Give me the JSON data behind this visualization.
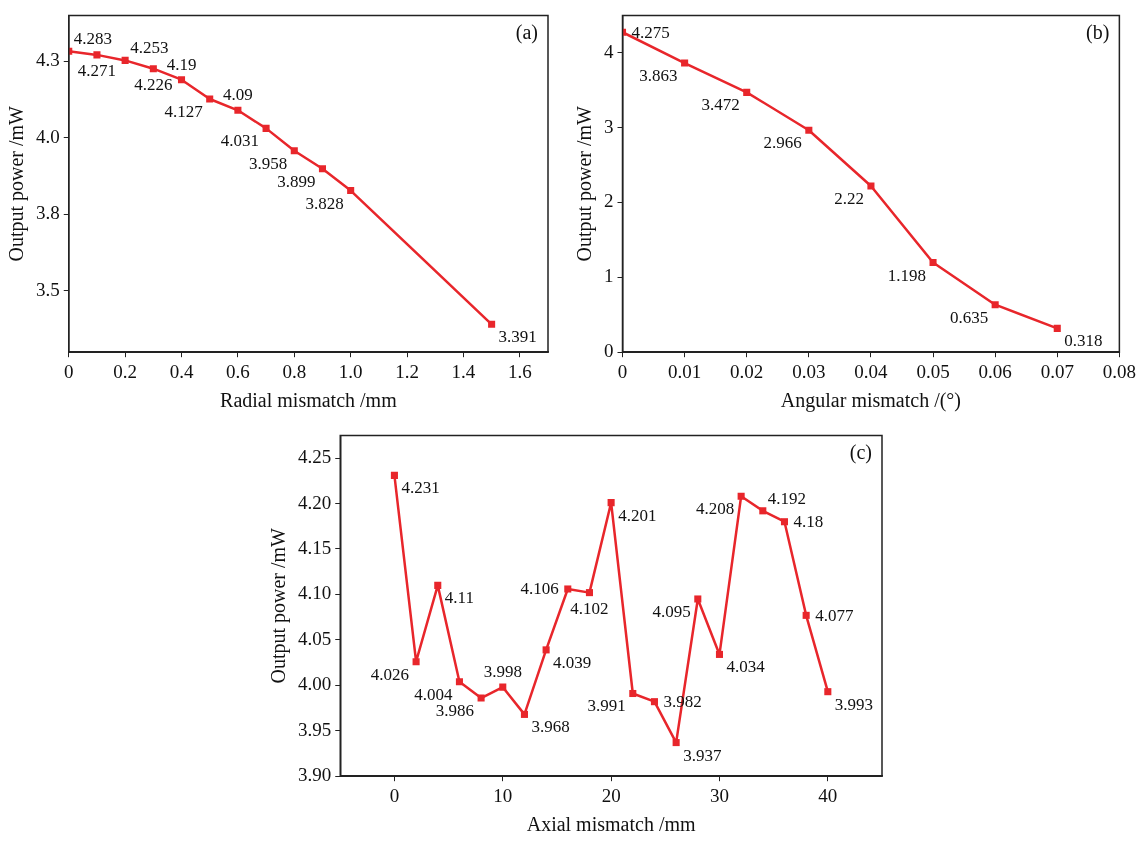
{
  "chart_data": [
    {
      "type": "line",
      "xlabel": "Radial mismatch /mm",
      "ylabel": "Output power /mW",
      "annotations": [
        "(a)"
      ],
      "x": [
        0,
        0.1,
        0.2,
        0.3,
        0.4,
        0.5,
        0.6,
        0.7,
        0.8,
        0.9,
        1.0,
        1.5
      ],
      "series": [
        {
          "color": "#e8262b",
          "values": [
            4.283,
            4.271,
            4.253,
            4.226,
            4.19,
            4.127,
            4.09,
            4.031,
            3.958,
            3.899,
            3.828,
            3.391
          ]
        }
      ],
      "xlim": [
        0,
        1.7
      ],
      "xticks": [
        0,
        0.2,
        0.4,
        0.6,
        0.8,
        {
          "value": 1,
          "label": "1.0"
        },
        1.2,
        1.4,
        1.6
      ],
      "ylim": [
        3.3,
        4.4
      ],
      "yticks": [
        {
          "value": 3.5,
          "label": "3.5"
        },
        {
          "value": 3.75,
          "label": "3.8"
        },
        {
          "value": 4,
          "label": "4.0"
        },
        {
          "value": 4.25,
          "label": "4.3"
        }
      ],
      "grid": false,
      "legend": false,
      "marker": "square",
      "line_style": "solid",
      "data_labels": true
    },
    {
      "type": "line",
      "xlabel": "Angular mismatch /(°)",
      "ylabel": "Output power /mW",
      "annotations": [
        "(b)"
      ],
      "x": [
        0,
        0.01,
        0.02,
        0.03,
        0.04,
        0.05,
        0.06,
        0.07
      ],
      "series": [
        {
          "color": "#e8262b",
          "values": [
            4.275,
            3.863,
            3.472,
            2.966,
            2.22,
            1.198,
            0.635,
            0.318
          ]
        }
      ],
      "xlim": [
        0,
        0.08
      ],
      "xticks": [
        0,
        0.01,
        0.02,
        0.03,
        0.04,
        0.05,
        0.06,
        0.07,
        0.08
      ],
      "ylim": [
        0,
        4.5
      ],
      "yticks": [
        0,
        1,
        2,
        3,
        4
      ],
      "grid": false,
      "legend": false,
      "marker": "square",
      "line_style": "solid",
      "data_labels": true
    },
    {
      "type": "line",
      "xlabel": "Axial mismatch /mm",
      "ylabel": "Output power /mW",
      "annotations": [
        "(c)"
      ],
      "x": [
        0,
        2,
        4,
        6,
        8,
        10,
        12,
        14,
        16,
        18,
        20,
        22,
        24,
        26,
        28,
        30,
        32,
        34,
        36,
        38,
        40
      ],
      "series": [
        {
          "color": "#e8262b",
          "values": [
            4.231,
            4.026,
            4.11,
            4.004,
            3.986,
            3.998,
            3.968,
            4.039,
            4.106,
            4.102,
            4.201,
            3.991,
            3.982,
            3.937,
            4.095,
            4.034,
            4.208,
            4.192,
            4.18,
            4.077,
            3.993
          ]
        }
      ],
      "xlim": [
        -5,
        45
      ],
      "xticks": [
        0,
        10,
        20,
        30,
        40
      ],
      "ylim": [
        3.9,
        4.275
      ],
      "yticks": [
        {
          "value": 3.9,
          "label": "3.90"
        },
        {
          "value": 3.95,
          "label": "3.95"
        },
        {
          "value": 4,
          "label": "4.00"
        },
        {
          "value": 4.05,
          "label": "4.05"
        },
        {
          "value": 4.1,
          "label": "4.10"
        },
        {
          "value": 4.15,
          "label": "4.15"
        },
        {
          "value": 4.2,
          "label": "4.20"
        },
        {
          "value": 4.25,
          "label": "4.25"
        }
      ],
      "grid": false,
      "legend": false,
      "marker": "square",
      "line_style": "solid",
      "data_labels": true
    }
  ]
}
